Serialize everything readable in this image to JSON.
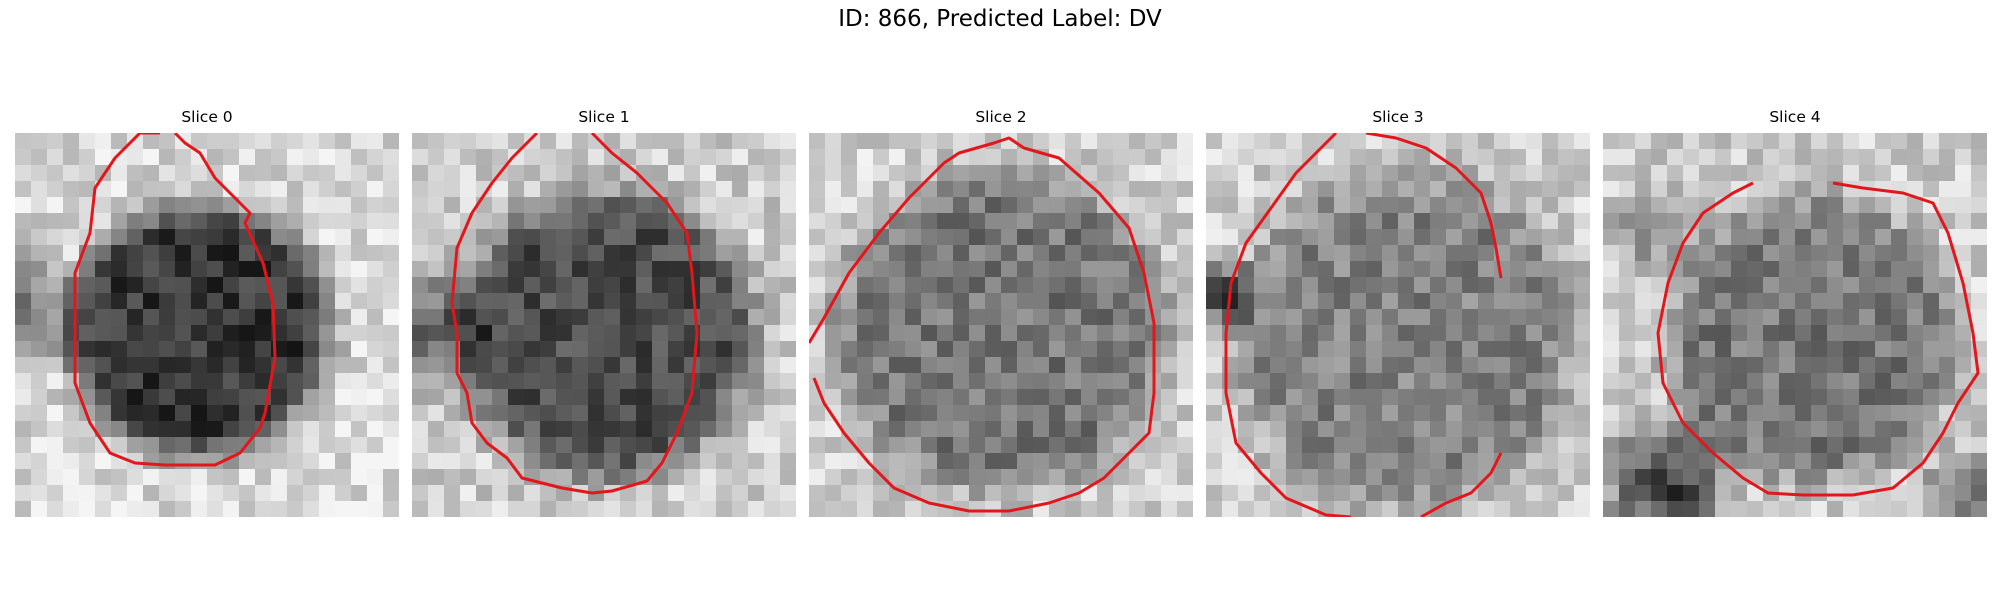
{
  "title": "ID: 866, Predicted Label: DV",
  "panels": [
    {
      "label": "Slice 0"
    },
    {
      "label": "Slice 1"
    },
    {
      "label": "Slice 2"
    },
    {
      "label": "Slice 3"
    },
    {
      "label": "Slice 4"
    }
  ],
  "colors": {
    "contour": "#e3161b",
    "background": "#ffffff"
  }
}
